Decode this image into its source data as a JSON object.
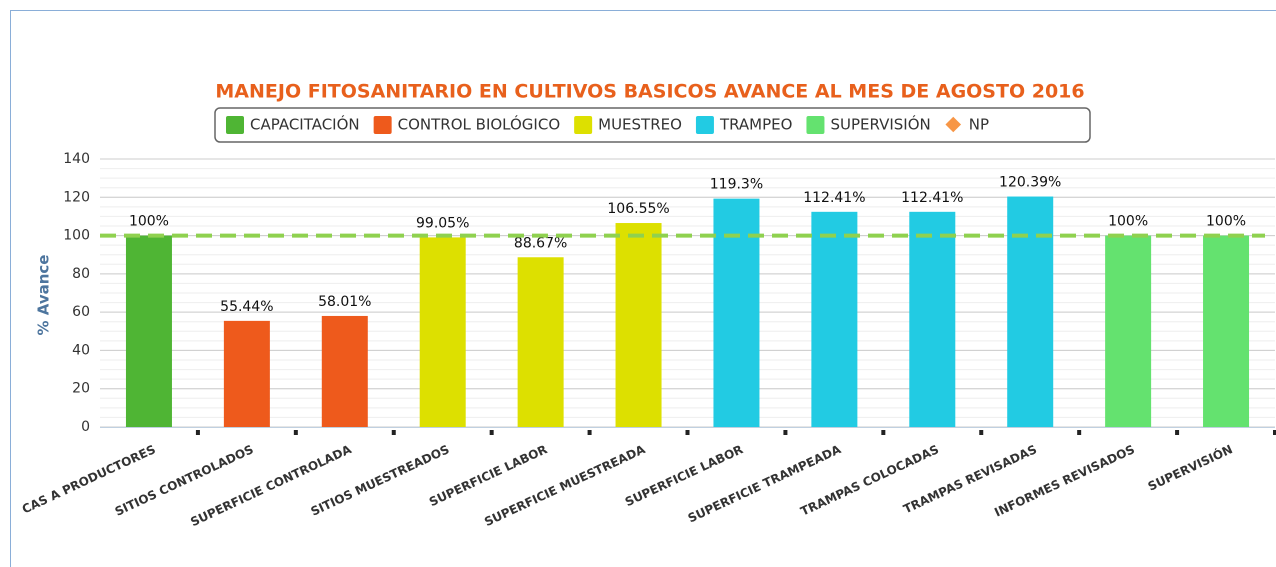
{
  "chart_data": {
    "type": "bar",
    "title": "MANEJO FITOSANITARIO EN CULTIVOS BASICOS AVANCE AL MES DE AGOSTO 2016",
    "y_label": "% Avance",
    "categories": [
      "CAS A PRODUCTORES",
      "SITIOS CONTROLADOS",
      "SUPERFICIE CONTROLADA",
      "SITIOS MUESTREADOS",
      "SUPERFICIE LABOR",
      "SUPERFICIE MUESTREADA",
      "SUPERFICIE LABOR",
      "SUPERFICIE TRAMPEADA",
      "TRAMPAS COLOCADAS",
      "TRAMPAS REVISADAS",
      "INFORMES REVISADOS",
      "SUPERVISIÓN"
    ],
    "series": [
      {
        "name": "CAPACITACIÓN",
        "color": "#4fb534",
        "values": [
          100,
          null,
          null,
          null,
          null,
          null,
          null,
          null,
          null,
          null,
          null,
          null
        ],
        "value_labels": [
          "100%",
          null,
          null,
          null,
          null,
          null,
          null,
          null,
          null,
          null,
          null,
          null
        ]
      },
      {
        "name": "CONTROL BIOLÓGICO",
        "color": "#ee5a1c",
        "values": [
          null,
          55.44,
          58.01,
          null,
          null,
          null,
          null,
          null,
          null,
          null,
          null,
          null
        ],
        "value_labels": [
          null,
          "55.44%",
          "58.01%",
          null,
          null,
          null,
          null,
          null,
          null,
          null,
          null,
          null
        ]
      },
      {
        "name": "MUESTREO",
        "color": "#dde000",
        "values": [
          null,
          null,
          null,
          99.05,
          88.67,
          106.55,
          null,
          null,
          null,
          null,
          null,
          null
        ],
        "value_labels": [
          null,
          null,
          null,
          "99.05%",
          "88.67%",
          "106.55%",
          null,
          null,
          null,
          null,
          null,
          null
        ]
      },
      {
        "name": "TRAMPEO",
        "color": "#22cbe3",
        "values": [
          null,
          null,
          null,
          null,
          null,
          null,
          119.3,
          112.41,
          112.41,
          120.39,
          null,
          null
        ],
        "value_labels": [
          null,
          null,
          null,
          null,
          null,
          null,
          "119.3%",
          "112.41%",
          "112.41%",
          "120.39%",
          null,
          null
        ]
      },
      {
        "name": "SUPERVISIÓN",
        "color": "#64e26f",
        "values": [
          null,
          null,
          null,
          null,
          null,
          null,
          null,
          null,
          null,
          null,
          100,
          100
        ],
        "value_labels": [
          null,
          null,
          null,
          null,
          null,
          null,
          null,
          null,
          null,
          null,
          "100%",
          "100%"
        ]
      },
      {
        "name": "NP",
        "type": "line",
        "color": "#f79646",
        "line_color": "#8fd14f",
        "values": [
          100,
          100,
          100,
          100,
          100,
          100,
          100,
          100,
          100,
          100,
          100,
          100
        ]
      }
    ],
    "ylim": [
      0,
      140
    ],
    "yticks": [
      0,
      20,
      40,
      60,
      80,
      100,
      120,
      140
    ],
    "grid": true
  }
}
